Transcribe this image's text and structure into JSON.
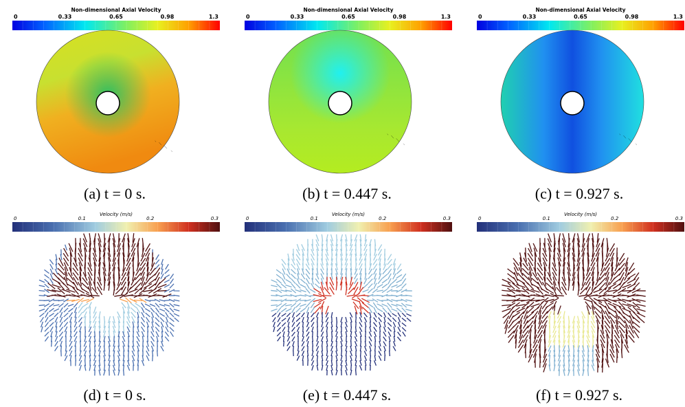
{
  "panels": [
    {
      "colorbar": {
        "title": "Non-dimensional Axial Velocity",
        "ticks": [
          "0",
          "0.33",
          "0.65",
          "0.98",
          "1.3"
        ]
      },
      "caption": "(a) t = 0 s."
    },
    {
      "colorbar": {
        "title": "Non-dimensional Axial Velocity",
        "ticks": [
          "0",
          "0.33",
          "0.65",
          "0.98",
          "1.3"
        ]
      },
      "caption": "(b) t = 0.447 s."
    },
    {
      "colorbar": {
        "title": "Non-dimensional Axial Velocity",
        "ticks": [
          "0",
          "0.33",
          "0.65",
          "0.98",
          "1.3"
        ]
      },
      "caption": "(c) t = 0.927 s."
    },
    {
      "colorbar": {
        "title": "Velocity (m/s)",
        "ticks": [
          "0",
          "0.1",
          "0.2",
          "0.3"
        ]
      },
      "caption": "(d) t = 0 s."
    },
    {
      "colorbar": {
        "title": "Velocity (m/s)",
        "ticks": [
          "0",
          "0.1",
          "0.2",
          "0.3"
        ]
      },
      "caption": "(e) t = 0.447 s."
    },
    {
      "colorbar": {
        "title": "Velocity (m/s)",
        "ticks": [
          "0",
          "0.1",
          "0.2",
          "0.3"
        ]
      },
      "caption": "(f) t = 0.927 s."
    }
  ]
}
